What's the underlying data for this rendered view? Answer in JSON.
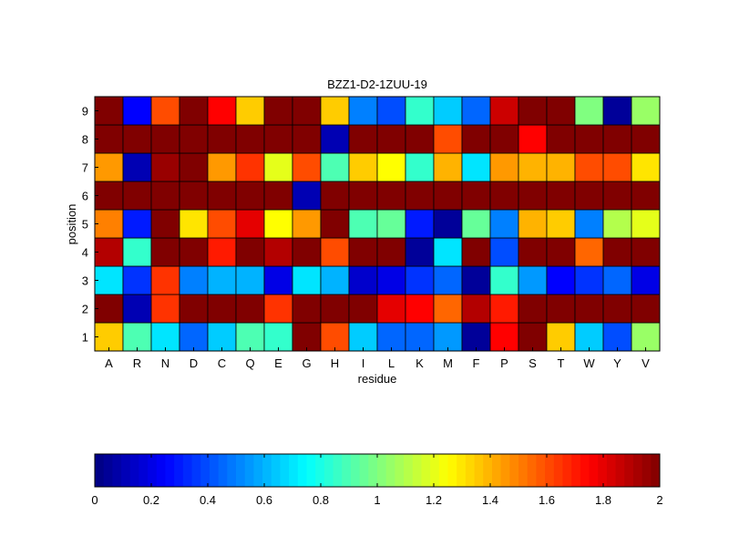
{
  "chart_data": {
    "type": "heatmap",
    "title": "BZZ1-D2-1ZUU-19",
    "xlabel": "residue",
    "ylabel": "position",
    "x_categories": [
      "A",
      "R",
      "N",
      "D",
      "C",
      "Q",
      "E",
      "G",
      "H",
      "I",
      "L",
      "K",
      "M",
      "F",
      "P",
      "S",
      "T",
      "W",
      "Y",
      "V"
    ],
    "y_categories": [
      "1",
      "2",
      "3",
      "4",
      "5",
      "6",
      "7",
      "8",
      "9"
    ],
    "values": [
      [
        1.35,
        0.9,
        0.7,
        0.45,
        0.65,
        0.9,
        0.85,
        2.0,
        1.6,
        0.65,
        0.45,
        0.45,
        0.55,
        0.05,
        1.75,
        2.0,
        1.35,
        0.65,
        0.4,
        1.05
      ],
      [
        2.0,
        0.1,
        1.65,
        2.0,
        2.0,
        2.0,
        1.65,
        2.0,
        2.0,
        2.0,
        1.8,
        1.75,
        1.55,
        1.9,
        1.7,
        2.0,
        2.0,
        2.0,
        2.0,
        2.0
      ],
      [
        0.7,
        0.35,
        1.65,
        0.5,
        0.6,
        0.6,
        0.2,
        0.7,
        0.6,
        0.15,
        0.2,
        0.35,
        0.45,
        0.05,
        0.85,
        0.55,
        0.25,
        0.35,
        0.45,
        0.2
      ],
      [
        1.9,
        0.85,
        2.0,
        2.0,
        1.7,
        2.0,
        1.9,
        2.0,
        1.6,
        2.0,
        2.0,
        0.05,
        0.7,
        2.0,
        0.4,
        2.0,
        2.0,
        1.55,
        2.0,
        2.0
      ],
      [
        1.5,
        0.3,
        2.0,
        1.3,
        1.6,
        1.8,
        1.25,
        1.45,
        2.0,
        0.9,
        0.95,
        0.3,
        0.05,
        0.95,
        0.5,
        1.4,
        1.35,
        0.5,
        1.1,
        1.2
      ],
      [
        2.0,
        2.0,
        2.0,
        2.0,
        2.0,
        2.0,
        2.0,
        0.1,
        2.0,
        2.0,
        2.0,
        2.0,
        2.0,
        2.0,
        2.0,
        2.0,
        2.0,
        2.0,
        2.0,
        2.0
      ],
      [
        1.45,
        0.1,
        1.95,
        2.0,
        1.45,
        1.65,
        1.2,
        1.6,
        0.9,
        1.35,
        1.25,
        0.85,
        1.4,
        0.7,
        1.45,
        1.4,
        1.4,
        1.6,
        1.6,
        1.3
      ],
      [
        2.0,
        2.0,
        2.0,
        2.0,
        2.0,
        2.0,
        2.0,
        2.0,
        0.1,
        2.0,
        2.0,
        2.0,
        1.6,
        2.0,
        2.0,
        1.75,
        2.0,
        2.0,
        2.0,
        2.0
      ],
      [
        2.0,
        0.25,
        1.6,
        2.0,
        1.75,
        1.35,
        2.0,
        2.0,
        1.35,
        0.5,
        0.4,
        0.85,
        0.65,
        0.45,
        1.85,
        2.0,
        2.0,
        1.0,
        0.05,
        1.05
      ]
    ],
    "colorbar": {
      "min": 0,
      "max": 2,
      "ticks": [
        "0",
        "0.2",
        "0.4",
        "0.6",
        "0.8",
        "1",
        "1.2",
        "1.4",
        "1.6",
        "1.8",
        "2"
      ]
    },
    "colormap": "jet",
    "grid": true
  }
}
